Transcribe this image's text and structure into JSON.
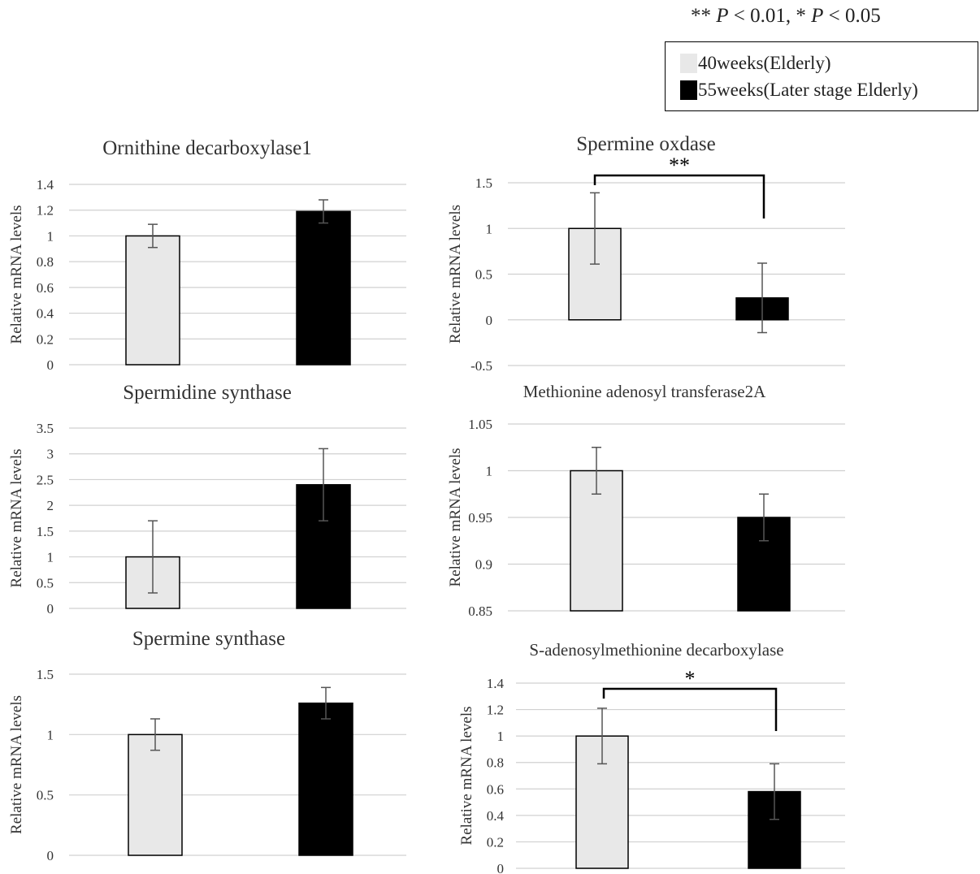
{
  "significance_note": {
    "stars2": "**",
    "p": "P",
    "lt01": "< 0.01,",
    "stars1": "*",
    "lt05": "< 0.05"
  },
  "legend": [
    {
      "label": "40weeks(Elderly)",
      "color": "#e8e8e8"
    },
    {
      "label": "55weeks(Later stage Elderly)",
      "color": "#000000"
    }
  ],
  "colors": {
    "bar_light": "#e8e8e8",
    "bar_dark": "#000000",
    "grid": "#d0d0d0",
    "error_bar": "#555555"
  },
  "chart_data": [
    {
      "type": "bar",
      "title": "Ornithine decarboxylase1",
      "ylabel": "Relative mRNA levels",
      "ylim": [
        0,
        1.4
      ],
      "yticks": [
        "0",
        "0.2",
        "0.4",
        "0.6",
        "0.8",
        "1",
        "1.2",
        "1.4"
      ],
      "series": [
        {
          "name": "40weeks(Elderly)",
          "value": 1.0,
          "error": 0.09
        },
        {
          "name": "55weeks(Later stage Elderly)",
          "value": 1.19,
          "error": 0.09
        }
      ],
      "significance": ""
    },
    {
      "type": "bar",
      "title": "Spermine oxdase",
      "ylabel": "Relative mRNA levels",
      "ylim": [
        -0.5,
        1.5
      ],
      "yticks": [
        "-0.5",
        "0",
        "0.5",
        "1",
        "1.5"
      ],
      "series": [
        {
          "name": "40weeks(Elderly)",
          "value": 1.0,
          "error": 0.39
        },
        {
          "name": "55weeks(Later stage Elderly)",
          "value": 0.24,
          "error": 0.38
        }
      ],
      "significance": "**"
    },
    {
      "type": "bar",
      "title": "Spermidine synthase",
      "ylabel": "Relative mRNA levels",
      "ylim": [
        0,
        3.5
      ],
      "yticks": [
        "0",
        "0.5",
        "1",
        "1.5",
        "2",
        "2.5",
        "3",
        "3.5"
      ],
      "series": [
        {
          "name": "40weeks(Elderly)",
          "value": 1.0,
          "error": 0.7
        },
        {
          "name": "55weeks(Later stage Elderly)",
          "value": 2.4,
          "error": 0.7
        }
      ],
      "significance": ""
    },
    {
      "type": "bar",
      "title": "Methionine adenosyl transferase2A",
      "ylabel": "Relative mRNA levels",
      "ylim": [
        0.85,
        1.05
      ],
      "yticks": [
        "0.85",
        "0.9",
        "0.95",
        "1",
        "1.05"
      ],
      "series": [
        {
          "name": "40weeks(Elderly)",
          "value": 1.0,
          "error": 0.025
        },
        {
          "name": "55weeks(Later stage Elderly)",
          "value": 0.95,
          "error": 0.025
        }
      ],
      "significance": ""
    },
    {
      "type": "bar",
      "title": "Spermine synthase",
      "ylabel": "Relative mRNA levels",
      "ylim": [
        0,
        1.5
      ],
      "yticks": [
        "0",
        "0.5",
        "1",
        "1.5"
      ],
      "series": [
        {
          "name": "40weeks(Elderly)",
          "value": 1.0,
          "error": 0.13
        },
        {
          "name": "55weeks(Later stage Elderly)",
          "value": 1.26,
          "error": 0.13
        }
      ],
      "significance": ""
    },
    {
      "type": "bar",
      "title": "S-adenosylmethionine decarboxylase",
      "ylabel": "Relative mRNA levels",
      "ylim": [
        0,
        1.4
      ],
      "yticks": [
        "0",
        "0.2",
        "0.4",
        "0.6",
        "0.8",
        "1",
        "1.2",
        "1.4"
      ],
      "series": [
        {
          "name": "40weeks(Elderly)",
          "value": 1.0,
          "error": 0.21
        },
        {
          "name": "55weeks(Later stage Elderly)",
          "value": 0.58,
          "error": 0.21
        }
      ],
      "significance": "*"
    }
  ]
}
